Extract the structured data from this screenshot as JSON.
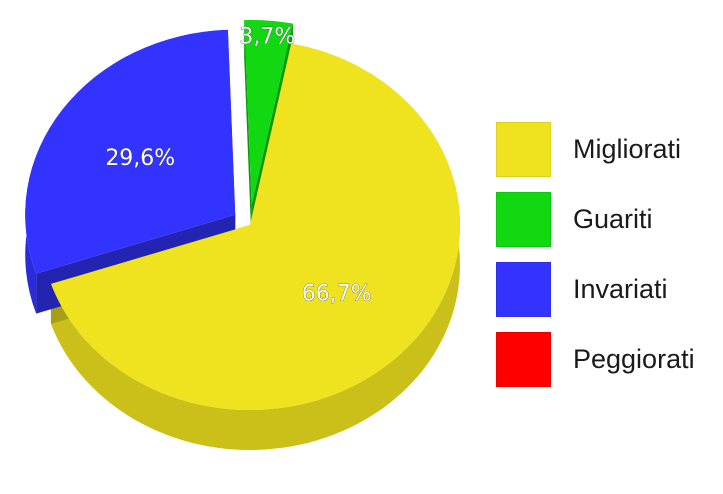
{
  "chart_data": {
    "type": "pie",
    "style": "3d-exploded",
    "categories": [
      "Migliorati",
      "Guariti",
      "Invariati",
      "Peggiorati"
    ],
    "values": [
      66.7,
      3.7,
      29.6,
      0
    ],
    "value_labels": [
      "66,7%",
      "3,7%",
      "29,6%",
      ""
    ],
    "colors": [
      "#EFE21F",
      "#11D811",
      "#3333FF",
      "#FF0000"
    ],
    "legend_placement": "right",
    "title": ""
  }
}
